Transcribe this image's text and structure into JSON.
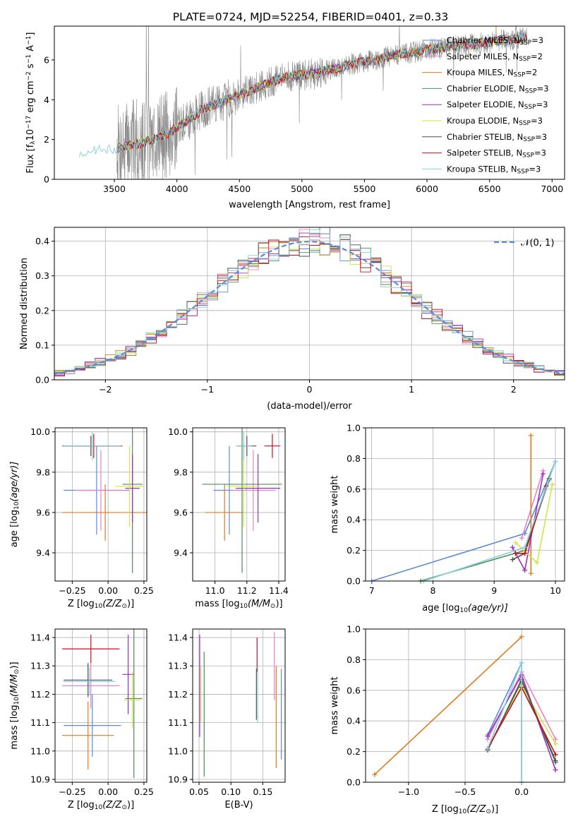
{
  "title": "PLATE=0724, MJD=52254, FIBERID=0401, z=0.33",
  "models": [
    {
      "name": "Chabrier MILES",
      "nssp": "3",
      "color": "#5b8bd6"
    },
    {
      "name": "Salpeter MILES",
      "nssp": "2",
      "color": "#e684c8"
    },
    {
      "name": "Kroupa MILES",
      "nssp": "2",
      "color": "#e07a1f"
    },
    {
      "name": "Chabrier ELODIE",
      "nssp": "3",
      "color": "#4b8d57"
    },
    {
      "name": "Salpeter ELODIE",
      "nssp": "3",
      "color": "#9b30c0"
    },
    {
      "name": "Kroupa ELODIE",
      "nssp": "3",
      "color": "#cfe54a"
    },
    {
      "name": "Chabrier STELIB",
      "nssp": "3",
      "color": "#4f4f4f"
    },
    {
      "name": "Salpeter STELIB",
      "nssp": "3",
      "color": "#c4121a"
    },
    {
      "name": "Kroupa STELIB",
      "nssp": "3",
      "color": "#86cfdc"
    }
  ],
  "chart_data": [
    {
      "id": "spectrum",
      "type": "line",
      "xlabel": "wavelength [Angstrom, rest frame]",
      "ylabel_main": "Flux [f",
      "ylabel_sub": "λ",
      "ylabel_rest": "10",
      "ylabel_exp1": "−17",
      "ylabel_mid": " erg cm",
      "ylabel_exp2": "−2",
      "ylabel_mid2": " s",
      "ylabel_exp3": "−1",
      "ylabel_mid3": " A",
      "ylabel_exp4": "−1",
      "ylabel_end": "]",
      "xlim": [
        3020,
        7100
      ],
      "ylim": [
        0,
        7.7
      ],
      "xticks": [
        3500,
        4000,
        4500,
        5000,
        5500,
        6000,
        6500,
        7000
      ],
      "yticks": [
        0,
        2,
        4,
        6
      ],
      "continuum": {
        "x": [
          3220,
          3300,
          3400,
          3500,
          3600,
          3700,
          3800,
          3900,
          4000,
          4100,
          4200,
          4300,
          4400,
          4500,
          4600,
          4700,
          4800,
          4900,
          5000,
          5100,
          5200,
          5300,
          5400,
          5500,
          5600,
          5700,
          5800,
          5900,
          6000,
          6100,
          6200,
          6300,
          6400,
          6500,
          6600,
          6700,
          6800,
          6900,
          7000
        ],
        "y": [
          1.2,
          1.45,
          1.5,
          1.5,
          1.7,
          1.8,
          2.0,
          2.2,
          2.6,
          3.0,
          3.5,
          3.75,
          4.0,
          4.3,
          4.5,
          4.75,
          5.0,
          5.15,
          5.25,
          5.3,
          5.5,
          5.6,
          5.8,
          5.9,
          6.0,
          6.2,
          6.3,
          6.4,
          6.55,
          6.6,
          6.7,
          6.75,
          6.8,
          6.9,
          7.0,
          7.05,
          7.1,
          7.1,
          7.2
        ]
      },
      "data_range": [
        3520,
        6800
      ]
    },
    {
      "id": "residuals",
      "type": "histogram",
      "xlabel": "(data-model)/error",
      "ylabel": "Normed distribution",
      "legend": "𝒩(0, 1)",
      "xlim": [
        -2.5,
        2.5
      ],
      "ylim": [
        0,
        0.44
      ],
      "xticks": [
        -2,
        -1,
        0,
        1,
        2
      ],
      "yticks": [
        0.0,
        0.1,
        0.2,
        0.3,
        0.4
      ]
    },
    {
      "id": "age-vs-z",
      "type": "errorbar",
      "xlabel_main": "Z [log",
      "xlabel_sub": "10",
      "xlabel_rest": "(Z/Z",
      "xlabel_sub2": "⊙",
      "xlabel_end": ")]",
      "ylabel_main": "age  [log",
      "ylabel_sub": "10",
      "ylabel_rest": "(age/yr)]",
      "xlim": [
        -0.37,
        0.27
      ],
      "ylim": [
        9.26,
        10.02
      ],
      "xticks": [
        "−0.25",
        "0.00",
        "0.25"
      ],
      "xtick_values": [
        -0.25,
        0,
        0.25
      ],
      "yticks": [
        9.4,
        9.6,
        9.8,
        10.0
      ],
      "points": [
        {
          "m": 0,
          "x": -0.08,
          "y": 9.71,
          "xerr": 0.23,
          "yerr": 0.22
        },
        {
          "m": 1,
          "x": -0.05,
          "y": 9.71,
          "xerr": 0.18,
          "yerr": 0.2
        },
        {
          "m": 2,
          "x": -0.02,
          "y": 9.6,
          "xerr": 0.3,
          "yerr": 0.14
        },
        {
          "m": 3,
          "x": 0.17,
          "y": 9.74,
          "xerr": 0.07,
          "yerr": 0.44
        },
        {
          "m": 4,
          "x": 0.17,
          "y": 9.72,
          "xerr": 0.05,
          "yerr": 0.17
        },
        {
          "m": 5,
          "x": 0.15,
          "y": 9.73,
          "xerr": 0.1,
          "yerr": 0.2
        },
        {
          "m": 6,
          "x": -0.12,
          "y": 9.93,
          "xerr": 0.2,
          "yerr": 0.05
        },
        {
          "m": 7,
          "x": -0.1,
          "y": 9.93,
          "xerr": 0.2,
          "yerr": 0.06
        },
        {
          "m": 8,
          "x": -0.11,
          "y": 9.93,
          "xerr": 0.2,
          "yerr": 0.07
        }
      ]
    },
    {
      "id": "age-vs-mass",
      "type": "errorbar",
      "xlabel_main": "mass [log",
      "xlabel_sub": "10",
      "xlabel_rest": "(M/M",
      "xlabel_sub2": "⊙",
      "xlabel_end": ")]",
      "xlim": [
        10.86,
        11.44
      ],
      "ylim": [
        9.26,
        10.02
      ],
      "xticks": [
        "11.0",
        "11.2",
        "11.4"
      ],
      "xtick_values": [
        11.0,
        11.2,
        11.4
      ],
      "yticks": [
        9.4,
        9.6,
        9.8,
        10.0
      ],
      "points": [
        {
          "m": 0,
          "x": 11.09,
          "y": 9.71,
          "xerr": 0.1,
          "yerr": 0.22
        },
        {
          "m": 1,
          "x": 11.24,
          "y": 9.71,
          "xerr": 0.14,
          "yerr": 0.2
        },
        {
          "m": 2,
          "x": 11.06,
          "y": 9.6,
          "xerr": 0.12,
          "yerr": 0.14
        },
        {
          "m": 3,
          "x": 11.17,
          "y": 9.74,
          "xerr": 0.25,
          "yerr": 0.44
        },
        {
          "m": 4,
          "x": 11.27,
          "y": 9.72,
          "xerr": 0.14,
          "yerr": 0.17
        },
        {
          "m": 5,
          "x": 11.18,
          "y": 9.73,
          "xerr": 0.1,
          "yerr": 0.2
        },
        {
          "m": 6,
          "x": 11.2,
          "y": 9.93,
          "xerr": 0.06,
          "yerr": 0.05
        },
        {
          "m": 7,
          "x": 11.36,
          "y": 9.93,
          "xerr": 0.05,
          "yerr": 0.06
        },
        {
          "m": 8,
          "x": 11.18,
          "y": 9.93,
          "xerr": 0.05,
          "yerr": 0.07
        }
      ]
    },
    {
      "id": "weight-vs-age",
      "type": "line",
      "xlabel_main": "age  [log",
      "xlabel_sub": "10",
      "xlabel_rest": "(age/yr)]",
      "ylabel": "mass weight",
      "xlim": [
        6.9,
        10.15
      ],
      "ylim": [
        0,
        1
      ],
      "xticks": [
        7,
        8,
        9,
        10
      ],
      "yticks": [
        "0.0",
        "0.2",
        "0.4",
        "0.6",
        "0.8",
        "1.0"
      ],
      "ytick_values": [
        0,
        0.2,
        0.4,
        0.6,
        0.8,
        1.0
      ],
      "series": [
        {
          "m": 0,
          "x": [
            7.0,
            9.5,
            10.0
          ],
          "y": [
            0.0,
            0.31,
            0.78
          ]
        },
        {
          "m": 1,
          "x": [
            9.45,
            9.8
          ],
          "y": [
            0.28,
            0.72
          ]
        },
        {
          "m": 2,
          "x": [
            9.6,
            9.6
          ],
          "y": [
            0.05,
            0.95
          ]
        },
        {
          "m": 3,
          "x": [
            7.8,
            9.5,
            9.9
          ],
          "y": [
            0.0,
            0.2,
            0.66
          ]
        },
        {
          "m": 4,
          "x": [
            9.3,
            9.5,
            9.8
          ],
          "y": [
            0.22,
            0.07,
            0.7
          ]
        },
        {
          "m": 5,
          "x": [
            9.35,
            9.7,
            9.95
          ],
          "y": [
            0.25,
            0.12,
            0.63
          ]
        },
        {
          "m": 6,
          "x": [
            9.3,
            9.5,
            9.9
          ],
          "y": [
            0.14,
            0.18,
            0.67
          ]
        },
        {
          "m": 7,
          "x": [
            9.35,
            9.5,
            9.85
          ],
          "y": [
            0.18,
            0.18,
            0.62
          ]
        },
        {
          "m": 8,
          "x": [
            7.85,
            9.5,
            10.0
          ],
          "y": [
            0.0,
            0.22,
            0.78
          ]
        }
      ]
    },
    {
      "id": "mass-vs-z",
      "type": "errorbar",
      "xlabel_main": "Z [log",
      "xlabel_sub": "10",
      "xlabel_rest": "(Z/Z",
      "xlabel_sub2": "⊙",
      "xlabel_end": ")]",
      "ylabel_main": "mass [log",
      "ylabel_sub": "10",
      "ylabel_rest": "(M/M",
      "ylabel_sub2": "⊙",
      "ylabel_end": ")]",
      "xlim": [
        -0.37,
        0.27
      ],
      "ylim": [
        10.89,
        11.43
      ],
      "xticks": [
        "−0.25",
        "0.00",
        "0.25"
      ],
      "xtick_values": [
        -0.25,
        0,
        0.25
      ],
      "yticks": [
        "10.9",
        "11.0",
        "11.1",
        "11.2",
        "11.3",
        "11.4"
      ],
      "ytick_values": [
        10.9,
        11.0,
        11.1,
        11.2,
        11.3,
        11.4
      ],
      "points": [
        {
          "m": 0,
          "x": -0.11,
          "y": 11.09,
          "xerr": 0.2,
          "yerr": 0.11
        },
        {
          "m": 1,
          "x": -0.12,
          "y": 11.23,
          "xerr": 0.2,
          "yerr": 0.08
        },
        {
          "m": 2,
          "x": -0.14,
          "y": 11.055,
          "xerr": 0.18,
          "yerr": 0.12
        },
        {
          "m": 3,
          "x": 0.18,
          "y": 11.185,
          "xerr": 0.06,
          "yerr": 0.28
        },
        {
          "m": 4,
          "x": 0.14,
          "y": 11.27,
          "xerr": 0.04,
          "yerr": 0.14
        },
        {
          "m": 5,
          "x": 0.17,
          "y": 11.18,
          "xerr": 0.06,
          "yerr": 0.1
        },
        {
          "m": 6,
          "x": -0.14,
          "y": 11.25,
          "xerr": 0.17,
          "yerr": 0.06
        },
        {
          "m": 7,
          "x": -0.12,
          "y": 11.36,
          "xerr": 0.2,
          "yerr": 0.05
        },
        {
          "m": 8,
          "x": -0.13,
          "y": 11.245,
          "xerr": 0.18,
          "yerr": 0.05
        }
      ]
    },
    {
      "id": "mass-vs-ebv",
      "type": "errorbar",
      "xlabel": "E(B-V)",
      "xlim": [
        0.04,
        0.185
      ],
      "ylim": [
        10.89,
        11.43
      ],
      "xticks": [
        "0.05",
        "0.10",
        "0.15"
      ],
      "xtick_values": [
        0.05,
        0.1,
        0.15
      ],
      "yticks": [
        "10.9",
        "11.0",
        "11.1",
        "11.2",
        "11.3",
        "11.4"
      ],
      "ytick_values": [
        10.9,
        11.0,
        11.1,
        11.2,
        11.3,
        11.4
      ],
      "points": [
        {
          "m": 0,
          "x": 0.179,
          "y": 11.13,
          "xerr": 0,
          "yerr": 0.16
        },
        {
          "m": 1,
          "x": 0.168,
          "y": 11.3,
          "xerr": 0,
          "yerr": 0.12
        },
        {
          "m": 2,
          "x": 0.171,
          "y": 11.12,
          "xerr": 0,
          "yerr": 0.18
        },
        {
          "m": 3,
          "x": 0.058,
          "y": 11.13,
          "xerr": 0,
          "yerr": 0.22
        },
        {
          "m": 4,
          "x": 0.051,
          "y": 11.23,
          "xerr": 0,
          "yerr": 0.18
        },
        {
          "m": 5,
          "x": 0.053,
          "y": 11.2,
          "xerr": 0,
          "yerr": 0.1
        },
        {
          "m": 6,
          "x": 0.14,
          "y": 11.2,
          "xerr": 0,
          "yerr": 0.09
        },
        {
          "m": 7,
          "x": 0.141,
          "y": 11.34,
          "xerr": 0,
          "yerr": 0.06
        },
        {
          "m": 8,
          "x": 0.142,
          "y": 11.2,
          "xerr": 0,
          "yerr": 0.1
        }
      ]
    },
    {
      "id": "weight-vs-z",
      "type": "line",
      "xlabel_main": "Z [log",
      "xlabel_sub": "10",
      "xlabel_rest": "(Z/Z",
      "xlabel_sub2": "⊙",
      "xlabel_end": ")]",
      "ylabel": "mass weight",
      "xlim": [
        -1.38,
        0.38
      ],
      "ylim": [
        0,
        1
      ],
      "xticks": [
        "−1.0",
        "−0.5",
        "0.0"
      ],
      "xtick_values": [
        -1.0,
        -0.5,
        0.0
      ],
      "yticks": [
        "0.0",
        "0.2",
        "0.4",
        "0.6",
        "0.8",
        "1.0"
      ],
      "ytick_values": [
        0,
        0.2,
        0.4,
        0.6,
        0.8,
        1.0
      ],
      "series": [
        {
          "m": 0,
          "x": [
            -0.3,
            0.0,
            0.0
          ],
          "y": [
            0.31,
            0.78,
            0.0
          ]
        },
        {
          "m": 1,
          "x": [
            -0.3,
            0.0,
            0.3
          ],
          "y": [
            0.28,
            0.72,
            0.28
          ]
        },
        {
          "m": 2,
          "x": [
            -1.3,
            0.0
          ],
          "y": [
            0.05,
            0.95
          ]
        },
        {
          "m": 3,
          "x": [
            -0.3,
            0.0,
            0.3
          ],
          "y": [
            0.21,
            0.66,
            0.13
          ]
        },
        {
          "m": 4,
          "x": [
            -0.3,
            0.0,
            0.3
          ],
          "y": [
            0.3,
            0.7,
            0.08
          ]
        },
        {
          "m": 5,
          "x": [
            -0.3,
            0.0,
            0.3
          ],
          "y": [
            0.22,
            0.63,
            0.25
          ]
        },
        {
          "m": 6,
          "x": [
            -0.3,
            0.0,
            0.3
          ],
          "y": [
            0.21,
            0.67,
            0.14
          ]
        },
        {
          "m": 7,
          "x": [
            -0.3,
            0.0,
            0.3
          ],
          "y": [
            0.22,
            0.62,
            0.18
          ]
        },
        {
          "m": 8,
          "x": [
            -0.3,
            0.0,
            0.0
          ],
          "y": [
            0.22,
            0.78,
            0.0
          ]
        }
      ]
    }
  ]
}
